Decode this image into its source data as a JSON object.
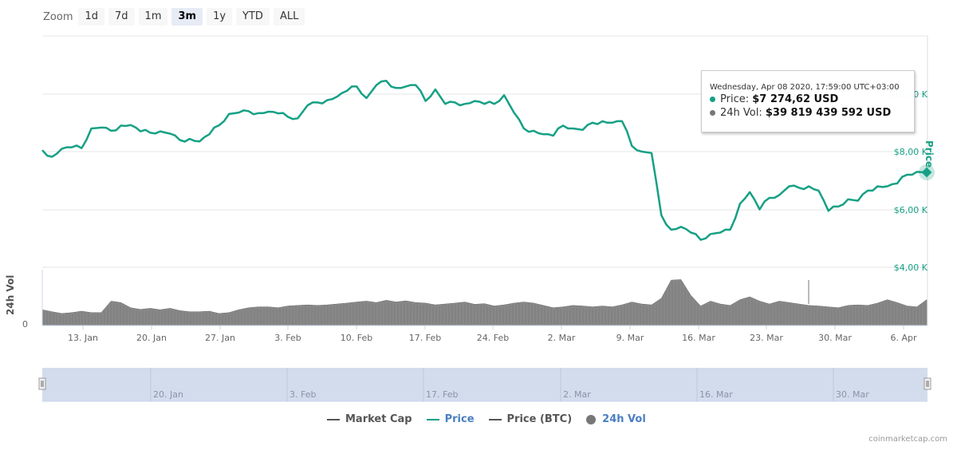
{
  "zoom": {
    "label": "Zoom",
    "buttons": [
      {
        "label": "1d",
        "active": false
      },
      {
        "label": "7d",
        "active": false
      },
      {
        "label": "1m",
        "active": false
      },
      {
        "label": "3m",
        "active": true
      },
      {
        "label": "1y",
        "active": false
      },
      {
        "label": "YTD",
        "active": false
      },
      {
        "label": "ALL",
        "active": false
      }
    ]
  },
  "tooltip": {
    "date": "Wednesday, Apr 08 2020, 17:59:00 UTC+03:00",
    "price_label": "Price:",
    "price_value": "$7 274,62 USD",
    "vol_label": "24h Vol:",
    "vol_value": "$39 819 439 592 USD"
  },
  "axes": {
    "price_title": "Price",
    "vol_title": "24h Vol",
    "vol_zero": "0"
  },
  "legend": [
    {
      "label": "Market Cap",
      "color": "#555555",
      "type": "line",
      "active": false
    },
    {
      "label": "Price",
      "color": "#16a085",
      "type": "line",
      "active": true
    },
    {
      "label": "Price (BTC)",
      "color": "#555555",
      "type": "line",
      "active": false
    },
    {
      "label": "24h Vol",
      "color": "#777777",
      "type": "circle",
      "active": true
    }
  ],
  "credit": "coinmarketcap.com",
  "colors": {
    "price": "#16a085",
    "volume": "#808080",
    "navigator_fill": "#d2dcec",
    "grid": "#e6e6e6",
    "accent_link": "#4a7fc1"
  },
  "navigator": {
    "labels": [
      "20. Jan",
      "3. Feb",
      "17. Feb",
      "2. Mar",
      "16. Mar",
      "30. Mar"
    ]
  },
  "chart_data": {
    "type": "line",
    "title": "",
    "xlabel": "",
    "ylabel": "Price",
    "x_ticks": [
      "13. Jan",
      "20. Jan",
      "27. Jan",
      "3. Feb",
      "10. Feb",
      "17. Feb",
      "24. Feb",
      "2. Mar",
      "9. Mar",
      "16. Mar",
      "23. Mar",
      "30. Mar",
      "6. Apr"
    ],
    "y_ticks": [
      "$4,00 K",
      "$6,00 K",
      "$8,00 K",
      "$10,00 K"
    ],
    "ylim": [
      4000,
      12000
    ],
    "grid": true,
    "legend_position": "bottom",
    "series": [
      {
        "name": "Price",
        "unit": "USD",
        "x": [
          "Jan 9",
          "Jan 10",
          "Jan 11",
          "Jan 12",
          "Jan 13",
          "Jan 14",
          "Jan 15",
          "Jan 16",
          "Jan 17",
          "Jan 18",
          "Jan 19",
          "Jan 20",
          "Jan 21",
          "Jan 22",
          "Jan 23",
          "Jan 24",
          "Jan 25",
          "Jan 26",
          "Jan 27",
          "Jan 28",
          "Jan 29",
          "Jan 30",
          "Jan 31",
          "Feb 1",
          "Feb 2",
          "Feb 3",
          "Feb 4",
          "Feb 5",
          "Feb 6",
          "Feb 7",
          "Feb 8",
          "Feb 9",
          "Feb 10",
          "Feb 11",
          "Feb 12",
          "Feb 13",
          "Feb 14",
          "Feb 15",
          "Feb 16",
          "Feb 17",
          "Feb 18",
          "Feb 19",
          "Feb 20",
          "Feb 21",
          "Feb 22",
          "Feb 23",
          "Feb 24",
          "Feb 25",
          "Feb 26",
          "Feb 27",
          "Feb 28",
          "Feb 29",
          "Mar 1",
          "Mar 2",
          "Mar 3",
          "Mar 4",
          "Mar 5",
          "Mar 6",
          "Mar 7",
          "Mar 8",
          "Mar 9",
          "Mar 10",
          "Mar 11",
          "Mar 12",
          "Mar 13",
          "Mar 14",
          "Mar 15",
          "Mar 16",
          "Mar 17",
          "Mar 18",
          "Mar 19",
          "Mar 20",
          "Mar 21",
          "Mar 22",
          "Mar 23",
          "Mar 24",
          "Mar 25",
          "Mar 26",
          "Mar 27",
          "Mar 28",
          "Mar 29",
          "Mar 30",
          "Mar 31",
          "Apr 1",
          "Apr 2",
          "Apr 3",
          "Apr 4",
          "Apr 5",
          "Apr 6",
          "Apr 7",
          "Apr 8"
        ],
        "values": [
          8050,
          7820,
          8100,
          8150,
          8120,
          8800,
          8830,
          8720,
          8900,
          8920,
          8700,
          8650,
          8700,
          8620,
          8400,
          8440,
          8350,
          8600,
          8910,
          9300,
          9350,
          9400,
          9330,
          9380,
          9320,
          9200,
          9150,
          9600,
          9700,
          9780,
          9900,
          10100,
          10250,
          9850,
          10300,
          10450,
          10200,
          10250,
          10300,
          9750,
          10150,
          9650,
          9700,
          9650,
          9750,
          9650,
          9650,
          9950,
          9350,
          8800,
          8720,
          8600,
          8550,
          8900,
          8800,
          8750,
          9000,
          9050,
          9000,
          9050,
          8200,
          8000,
          7950,
          5800,
          5300,
          5400,
          5200,
          4950,
          5150,
          5200,
          5300,
          6200,
          6600,
          6000,
          6400,
          6500,
          6800,
          6750,
          6800,
          6650,
          5950,
          6100,
          6350,
          6300,
          6650,
          6800,
          6800,
          6900,
          7200,
          7300,
          7275
        ]
      },
      {
        "name": "24h Vol",
        "unit": "USD (relative)",
        "values": [
          0.55,
          0.48,
          0.42,
          0.45,
          0.5,
          0.45,
          0.45,
          0.85,
          0.8,
          0.62,
          0.56,
          0.6,
          0.55,
          0.6,
          0.52,
          0.48,
          0.48,
          0.5,
          0.42,
          0.45,
          0.55,
          0.62,
          0.65,
          0.65,
          0.62,
          0.68,
          0.7,
          0.72,
          0.7,
          0.72,
          0.75,
          0.78,
          0.82,
          0.85,
          0.8,
          0.88,
          0.82,
          0.86,
          0.8,
          0.78,
          0.72,
          0.75,
          0.78,
          0.82,
          0.74,
          0.76,
          0.68,
          0.72,
          0.78,
          0.82,
          0.78,
          0.7,
          0.62,
          0.65,
          0.7,
          0.68,
          0.65,
          0.68,
          0.65,
          0.72,
          0.82,
          0.75,
          0.72,
          0.95,
          1.58,
          1.6,
          1.05,
          0.68,
          0.85,
          0.75,
          0.7,
          0.9,
          1.0,
          0.85,
          0.75,
          0.85,
          0.8,
          0.75,
          0.7,
          0.68,
          0.65,
          0.62,
          0.7,
          0.72,
          0.7,
          0.78,
          0.9,
          0.8,
          0.68,
          0.65,
          0.9
        ]
      }
    ],
    "annotations": [
      {
        "type": "tooltip",
        "x": "Apr 08 2020",
        "price": "$7 274,62 USD",
        "volume": "$39 819 439 592 USD"
      }
    ]
  }
}
